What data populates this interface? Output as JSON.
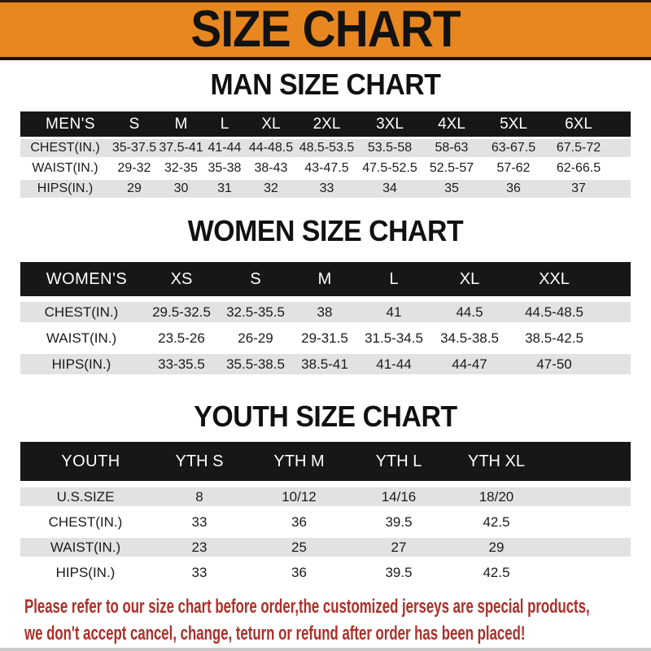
{
  "banner": {
    "title": "SIZE CHART",
    "bg_color": "#E8861F",
    "text_color": "#121212"
  },
  "sections": [
    {
      "title": "MAN SIZE CHART",
      "header_label": "MEN'S",
      "columns": [
        "S",
        "M",
        "L",
        "XL",
        "2XL",
        "3XL",
        "4XL",
        "5XL",
        "6XL"
      ],
      "rows": [
        {
          "label": "CHEST(IN.)",
          "values": [
            "35-37.5",
            "37.5-41",
            "41-44",
            "44-48.5",
            "48.5-53.5",
            "53.5-58",
            "58-63",
            "63-67.5",
            "67.5-72"
          ]
        },
        {
          "label": "WAIST(IN.)",
          "values": [
            "29-32",
            "32-35",
            "35-38",
            "38-43",
            "43-47.5",
            "47.5-52.5",
            "52.5-57",
            "57-62",
            "62-66.5"
          ]
        },
        {
          "label": "HIPS(IN.)",
          "values": [
            "29",
            "30",
            "31",
            "32",
            "33",
            "34",
            "35",
            "36",
            "37"
          ]
        }
      ]
    },
    {
      "title": "WOMEN SIZE CHART",
      "header_label": "WOMEN'S",
      "columns": [
        "XS",
        "S",
        "M",
        "L",
        "XL",
        "XXL"
      ],
      "rows": [
        {
          "label": "CHEST(IN.)",
          "values": [
            "29.5-32.5",
            "32.5-35.5",
            "38",
            "41",
            "44.5",
            "44.5-48.5"
          ]
        },
        {
          "label": "WAIST(IN.)",
          "values": [
            "23.5-26",
            "26-29",
            "29-31.5",
            "31.5-34.5",
            "34.5-38.5",
            "38.5-42.5"
          ]
        },
        {
          "label": "HIPS(IN.)",
          "values": [
            "33-35.5",
            "35.5-38.5",
            "38.5-41",
            "41-44",
            "44-47",
            "47-50"
          ]
        }
      ]
    },
    {
      "title": "YOUTH SIZE CHART",
      "header_label": "YOUTH",
      "columns": [
        "YTH S",
        "YTH M",
        "YTH L",
        "YTH XL"
      ],
      "rows": [
        {
          "label": "U.S.SIZE",
          "values": [
            "8",
            "10/12",
            "14/16",
            "18/20"
          ]
        },
        {
          "label": "CHEST(IN.)",
          "values": [
            "33",
            "36",
            "39.5",
            "42.5"
          ]
        },
        {
          "label": "WAIST(IN.)",
          "values": [
            "23",
            "25",
            "27",
            "29"
          ]
        },
        {
          "label": "HIPS(IN.)",
          "values": [
            "33",
            "36",
            "39.5",
            "42.5"
          ]
        }
      ]
    }
  ],
  "footer": {
    "line1": "Please refer to our size chart before order,the customized jerseys are special products,",
    "line2": "we don't accept cancel, change, teturn or refund after order has been placed!",
    "text_color": "#AD2F28"
  }
}
